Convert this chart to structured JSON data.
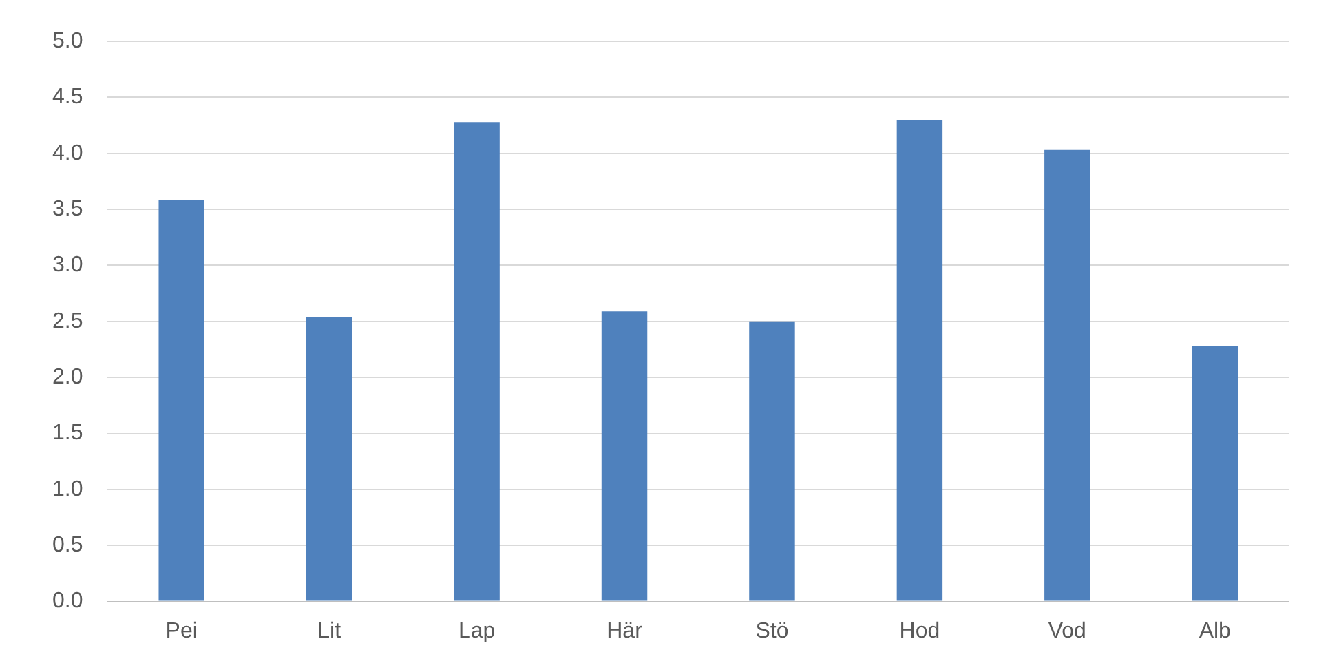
{
  "chart_data": {
    "type": "bar",
    "categories": [
      "Pei",
      "Lit",
      "Lap",
      "Här",
      "Stö",
      "Hod",
      "Vod",
      "Alb"
    ],
    "values": [
      3.58,
      2.54,
      4.28,
      2.59,
      2.5,
      4.3,
      4.03,
      2.28
    ],
    "color": "#4f81bd",
    "ylim": [
      0,
      5
    ],
    "yticks": [
      {
        "value": 0,
        "label": "0.0"
      },
      {
        "value": 0.5,
        "label": "0.5"
      },
      {
        "value": 1,
        "label": "1.0"
      },
      {
        "value": 1.5,
        "label": "1.5"
      },
      {
        "value": 2,
        "label": "2.0"
      },
      {
        "value": 2.5,
        "label": "2.5"
      },
      {
        "value": 3,
        "label": "3.0"
      },
      {
        "value": 3.5,
        "label": "3.5"
      },
      {
        "value": 4,
        "label": "4.0"
      },
      {
        "value": 4.5,
        "label": "4.5"
      },
      {
        "value": 5,
        "label": "5.0"
      }
    ],
    "grid": "y",
    "legend": false
  }
}
